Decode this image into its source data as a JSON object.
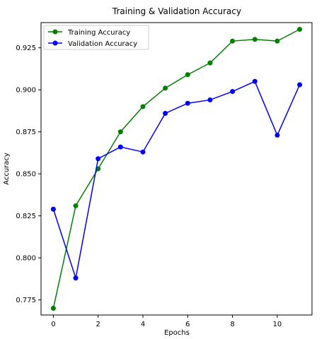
{
  "chart_data": {
    "type": "line",
    "title": "Training & Validation Accuracy",
    "xlabel": "Epochs",
    "ylabel": "Accuracy",
    "x": [
      0,
      1,
      2,
      3,
      4,
      5,
      6,
      7,
      8,
      9,
      10,
      11
    ],
    "xlim": [
      -0.55,
      11.55
    ],
    "ylim": [
      0.766,
      0.94
    ],
    "xticks": [
      0,
      2,
      4,
      6,
      8,
      10
    ],
    "yticks": [
      0.775,
      0.8,
      0.825,
      0.85,
      0.875,
      0.9,
      0.925
    ],
    "ytick_labels": [
      "0.775",
      "0.800",
      "0.825",
      "0.850",
      "0.875",
      "0.900",
      "0.925"
    ],
    "grid": false,
    "legend_position": "top-left",
    "series": [
      {
        "name": "Training Accuracy",
        "color": "#008000",
        "values": [
          0.77,
          0.831,
          0.853,
          0.875,
          0.89,
          0.901,
          0.909,
          0.916,
          0.929,
          0.93,
          0.929,
          0.936
        ]
      },
      {
        "name": "Validation Accuracy",
        "color": "#0000ff",
        "values": [
          0.829,
          0.788,
          0.859,
          0.866,
          0.863,
          0.886,
          0.892,
          0.894,
          0.899,
          0.905,
          0.873,
          0.903
        ]
      }
    ]
  }
}
